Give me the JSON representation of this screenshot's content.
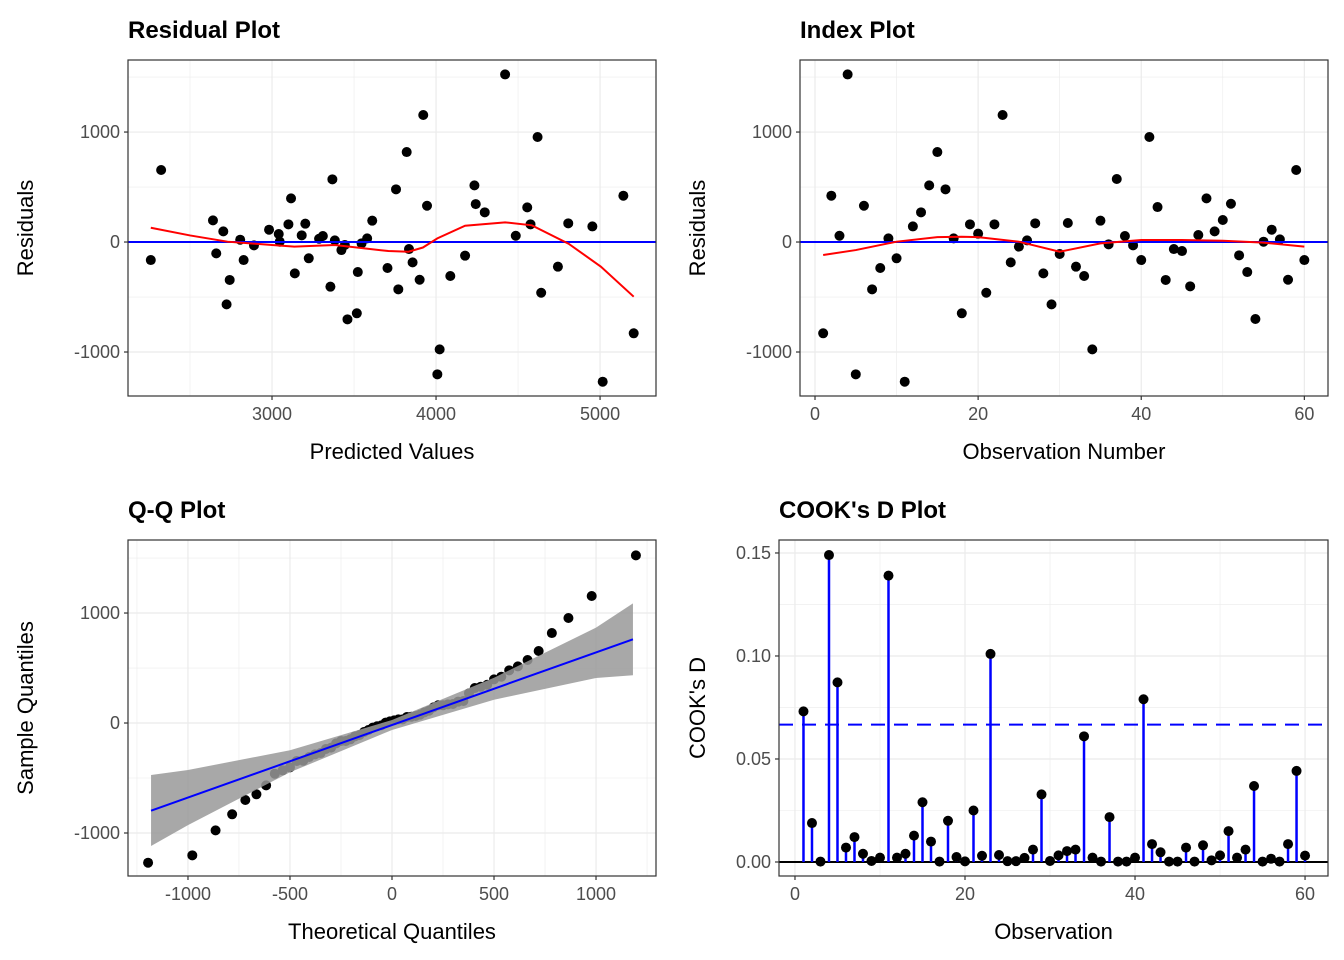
{
  "colors": {
    "points": "#000000",
    "reference_line": "#0000ff",
    "smooth": "#ff0000",
    "band": "#999999",
    "grid": "#ebebeb",
    "border": "#333333",
    "stems": "#0000ff"
  },
  "chart_data": [
    {
      "type": "scatter",
      "title": "Residual Plot",
      "xlabel": "Predicted Values",
      "ylabel": "Residuals",
      "xlim": [
        2122,
        5341
      ],
      "ylim": [
        -1400,
        1655
      ],
      "xticks": [
        3000,
        4000,
        5000
      ],
      "xtick_labels": [
        "3000",
        "4000",
        "5000"
      ],
      "yticks": [
        -1000,
        0,
        1000
      ],
      "ytick_labels": [
        "-1000",
        "0",
        "1000"
      ],
      "grid": true,
      "hline": 0,
      "x": [
        2261,
        2324,
        2640,
        2660,
        2703,
        2723,
        2742,
        2806,
        2827,
        2890,
        2982,
        3041,
        3047,
        3100,
        3116,
        3139,
        3181,
        3203,
        3224,
        3287,
        3310,
        3356,
        3368,
        3383,
        3423,
        3444,
        3460,
        3517,
        3523,
        3546,
        3580,
        3611,
        3704,
        3756,
        3770,
        3821,
        3835,
        3857,
        3900,
        3922,
        3945,
        4008,
        4022,
        4087,
        4177,
        4234,
        4242,
        4297,
        4421,
        4486,
        4556,
        4576,
        4619,
        4641,
        4743,
        4806,
        4953,
        5016,
        5142,
        5205
      ],
      "y": [
        -164,
        655,
        197,
        -103,
        97,
        -567,
        -345,
        21,
        -164,
        -30,
        112,
        73,
        3,
        161,
        397,
        -285,
        61,
        167,
        -148,
        30,
        55,
        -406,
        570,
        15,
        -73,
        -27,
        -703,
        -648,
        -273,
        -12,
        33,
        194,
        -236,
        479,
        -430,
        818,
        -64,
        -185,
        -343,
        1155,
        330,
        -1203,
        -976,
        -309,
        -124,
        515,
        345,
        270,
        1524,
        57,
        315,
        161,
        955,
        -461,
        -224,
        170,
        142,
        -1270,
        421,
        -830
      ],
      "smooth": [
        [
          2261,
          130
        ],
        [
          2500,
          60
        ],
        [
          2729,
          3
        ],
        [
          3000,
          -27
        ],
        [
          3136,
          -42
        ],
        [
          3383,
          -27
        ],
        [
          3709,
          -82
        ],
        [
          3832,
          -88
        ],
        [
          3920,
          -50
        ],
        [
          4008,
          33
        ],
        [
          4177,
          148
        ],
        [
          4421,
          179
        ],
        [
          4584,
          152
        ],
        [
          4808,
          -15
        ],
        [
          5005,
          -224
        ],
        [
          5205,
          -497
        ]
      ]
    },
    {
      "type": "scatter",
      "title": "Index Plot",
      "xlabel": "Observation Number",
      "ylabel": "Residuals",
      "xlim": [
        -1.84,
        62.9
      ],
      "ylim": [
        -1400,
        1655
      ],
      "xticks": [
        0,
        20,
        40,
        60
      ],
      "xtick_labels": [
        "0",
        "20",
        "40",
        "60"
      ],
      "yticks": [
        -1000,
        0,
        1000
      ],
      "ytick_labels": [
        "-1000",
        "0",
        "1000"
      ],
      "grid": true,
      "hline": 0,
      "y": [
        -830,
        421,
        57,
        1524,
        -1203,
        330,
        -430,
        -236,
        33,
        -148,
        -1270,
        142,
        270,
        515,
        818,
        479,
        33,
        -648,
        161,
        76,
        -461,
        161,
        1155,
        -185,
        -42,
        15,
        170,
        -285,
        -567,
        -109,
        173,
        -224,
        -309,
        -976,
        194,
        -21,
        573,
        55,
        -30,
        -164,
        955,
        318,
        -345,
        -64,
        -82,
        -403,
        64,
        397,
        97,
        200,
        348,
        -121,
        -273,
        -700,
        3,
        112,
        24,
        -343,
        655,
        -164
      ],
      "smooth": [
        [
          1,
          -118
        ],
        [
          5,
          -73
        ],
        [
          10,
          3
        ],
        [
          15,
          45
        ],
        [
          18,
          48
        ],
        [
          20,
          45
        ],
        [
          25,
          3
        ],
        [
          30,
          -88
        ],
        [
          31,
          -73
        ],
        [
          35,
          -12
        ],
        [
          40,
          18
        ],
        [
          45,
          18
        ],
        [
          50,
          12
        ],
        [
          55,
          -6
        ],
        [
          60,
          -42
        ]
      ]
    },
    {
      "type": "scatter",
      "title": "Q-Q Plot",
      "xlabel": "Theoretical Quantiles",
      "ylabel": "Sample Quantiles",
      "xlim": [
        -1294,
        1294
      ],
      "ylim": [
        -1391,
        1664
      ],
      "xticks": [
        -1000,
        -500,
        0,
        500,
        1000
      ],
      "xtick_labels": [
        "-1000",
        "-500",
        "0",
        "500",
        "1000"
      ],
      "yticks": [
        -1000,
        0,
        1000
      ],
      "ytick_labels": [
        "-1000",
        "0",
        "1000"
      ],
      "grid": true,
      "reference_line": [
        [
          -1181,
          -797
        ],
        [
          1181,
          761
        ]
      ],
      "band": {
        "x": [
          -1181,
          -1000,
          -500,
          0,
          500,
          1000,
          1181
        ],
        "lower": [
          -1118,
          -928,
          -448,
          -63,
          212,
          409,
          434
        ],
        "upper": [
          -473,
          -427,
          -248,
          27,
          412,
          867,
          1088
        ]
      }
    },
    {
      "type": "bar",
      "title": "COOK's D Plot",
      "xlabel": "Observation",
      "ylabel": "COOK's D",
      "xlim": [
        -1.88,
        62.7
      ],
      "ylim": [
        -0.0068,
        0.1563
      ],
      "xticks": [
        0,
        20,
        40,
        60
      ],
      "xtick_labels": [
        "0",
        "20",
        "40",
        "60"
      ],
      "yticks": [
        0,
        0.05,
        0.1,
        0.15
      ],
      "ytick_labels": [
        "0.00",
        "0.05",
        "0.10",
        "0.15"
      ],
      "grid": true,
      "threshold": 0.0667,
      "values": [
        0.0731,
        0.0189,
        0.0002,
        0.149,
        0.0872,
        0.007,
        0.0121,
        0.004,
        0.0005,
        0.0021,
        0.139,
        0.0021,
        0.004,
        0.0128,
        0.029,
        0.0099,
        0.0002,
        0.02,
        0.0024,
        0.0003,
        0.025,
        0.003,
        0.101,
        0.0034,
        0.0004,
        0.0004,
        0.002,
        0.006,
        0.0328,
        0.0005,
        0.0032,
        0.0053,
        0.006,
        0.061,
        0.0021,
        0.0002,
        0.0218,
        0.0002,
        0.0002,
        0.0021,
        0.079,
        0.0087,
        0.0047,
        0.0002,
        0.0002,
        0.007,
        0.0002,
        0.0081,
        0.0008,
        0.0032,
        0.015,
        0.0021,
        0.006,
        0.0369,
        0.0002,
        0.0016,
        0.0002,
        0.0087,
        0.0442,
        0.0031
      ]
    }
  ]
}
